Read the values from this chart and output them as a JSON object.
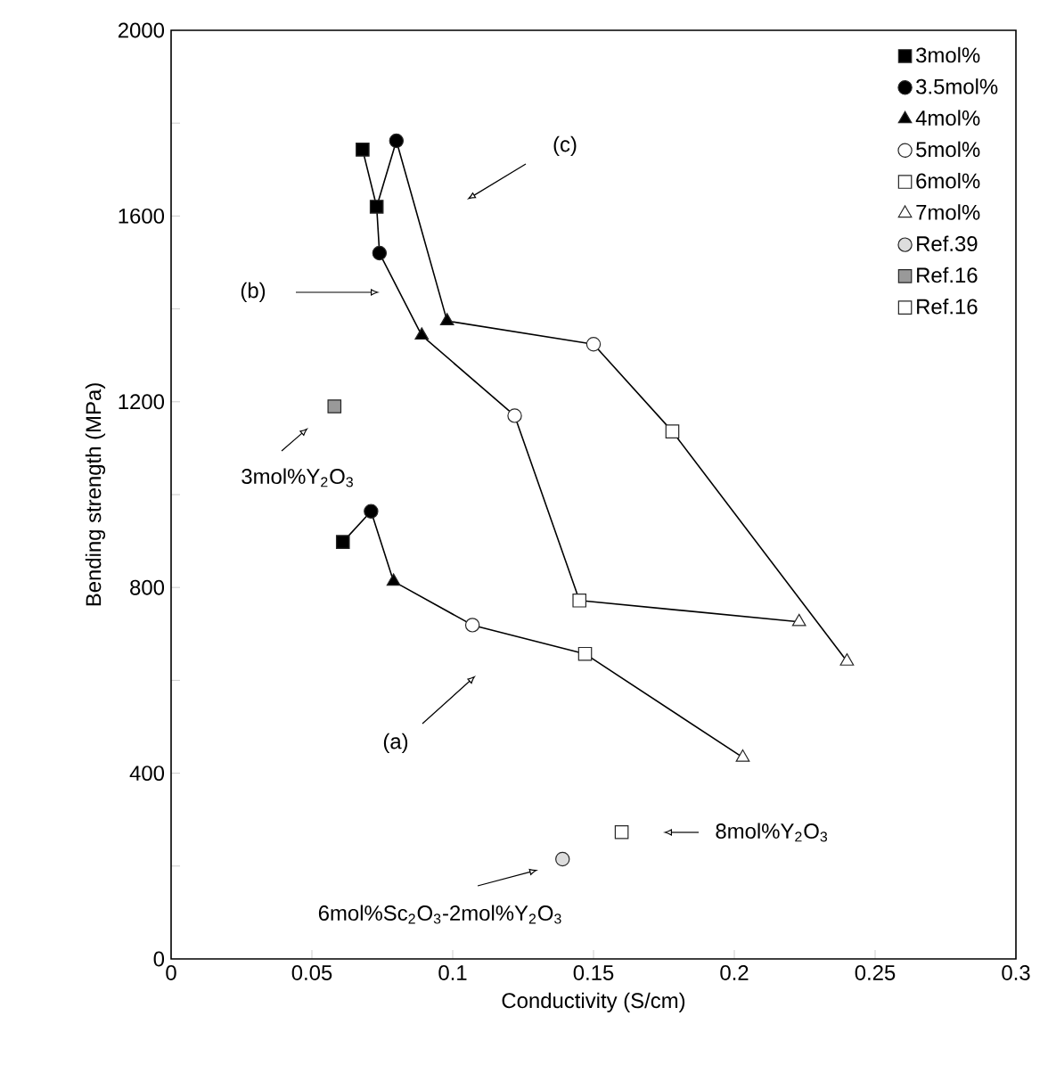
{
  "chart_data": {
    "type": "scatter",
    "xlabel": "Conductivity (S/cm)",
    "ylabel": "Bending strength (MPa)",
    "xlim": [
      0,
      0.3
    ],
    "ylim": [
      0,
      2000
    ],
    "xticks": [
      0,
      0.05,
      0.1,
      0.15,
      0.2,
      0.25,
      0.3
    ],
    "yticks": [
      0,
      {
        "value": 200,
        "label": null
      },
      400,
      {
        "value": 600,
        "label": null
      },
      800,
      {
        "value": 1000,
        "label": null
      },
      1200,
      {
        "value": 1400,
        "label": null
      },
      1600,
      {
        "value": 1800,
        "label": null
      },
      2000
    ],
    "legend": "top right",
    "series": [
      {
        "name": "3mol%",
        "marker": "square",
        "color": "#000000",
        "x": [
          0.068,
          0.073,
          0.061
        ],
        "values": [
          1743,
          1620,
          898
        ]
      },
      {
        "name": "3.5mol%",
        "marker": "circle",
        "color": "#000000",
        "x": [
          0.08,
          0.074,
          0.071
        ],
        "values": [
          1762,
          1520,
          964
        ]
      },
      {
        "name": "4mol%",
        "marker": "triangle",
        "color": "#000000",
        "x": [
          0.098,
          0.089,
          0.079
        ],
        "values": [
          1374,
          1343,
          813
        ]
      },
      {
        "name": "5mol%",
        "marker": "circle",
        "color": "#ffffff",
        "x": [
          0.15,
          0.122,
          0.107
        ],
        "values": [
          1324,
          1170,
          719
        ]
      },
      {
        "name": "6mol%",
        "marker": "square",
        "color": "#ffffff",
        "x": [
          0.178,
          0.145,
          0.147
        ],
        "values": [
          1136,
          772,
          657
        ]
      },
      {
        "name": "7mol%",
        "marker": "triangle",
        "color": "#ffffff",
        "x": [
          0.24,
          0.223,
          0.203
        ],
        "values": [
          641,
          726,
          434
        ]
      },
      {
        "name": "Ref.39",
        "marker": "circle",
        "color": "#dddddd",
        "x": [
          0.139
        ],
        "values": [
          215
        ]
      },
      {
        "name": "Ref.16",
        "marker": "square",
        "color": "#999999",
        "x": [
          0.058
        ],
        "values": [
          1190
        ]
      },
      {
        "name": "Ref.16",
        "marker": "square",
        "color": "#ffffff",
        "x": [
          0.16
        ],
        "values": [
          273
        ]
      },
      {
        "type": "line",
        "marker": "none",
        "color": "#000000",
        "x": [
          0.068,
          0.073,
          0.08,
          0.098,
          0.15,
          0.178,
          0.24
        ],
        "values": [
          1743,
          1620,
          1762,
          1374,
          1324,
          1136,
          641
        ]
      },
      {
        "type": "line",
        "marker": "none",
        "color": "#000000",
        "x": [
          0.073,
          0.074,
          0.089,
          0.122,
          0.145,
          0.223
        ],
        "values": [
          1620,
          1520,
          1343,
          1170,
          772,
          726
        ]
      },
      {
        "type": "line",
        "marker": "none",
        "color": "#000000",
        "x": [
          0.061,
          0.071,
          0.079,
          0.107,
          0.147,
          0.203
        ],
        "values": [
          898,
          964,
          813,
          719,
          657,
          434
        ]
      }
    ],
    "annotations": [
      "(c)",
      "(b)",
      "(a)",
      "3mol%Y$_{2}$O$_{3}$",
      "8mol%Y$_{2}$O$_{3}$",
      "6mol%Sc$_{2}$O$_{3}$-2mol%Y$_{2}$O$_{3}$"
    ]
  }
}
